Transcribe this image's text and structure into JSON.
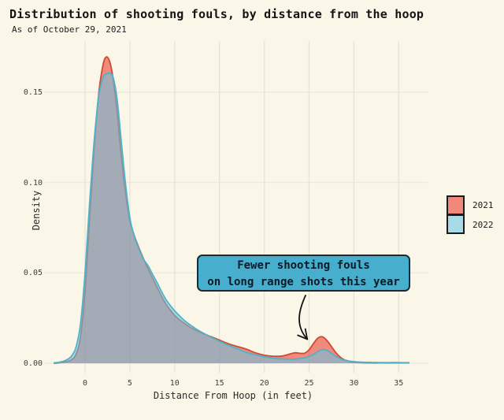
{
  "header": {
    "title": "Distribution of shooting fouls, by distance from the hoop",
    "subtitle": "As of October 29, 2021"
  },
  "chart_data": {
    "type": "area",
    "subtype": "density",
    "title": "Distribution of shooting fouls, by distance from the hoop",
    "subtitle": "As of October 29, 2021",
    "xlabel": "Distance From Hoop (in feet)",
    "ylabel": "Density",
    "x_ticks": [
      0,
      5,
      10,
      15,
      20,
      25,
      30,
      35
    ],
    "y_ticks": [
      "0.00",
      "0.05",
      "0.10",
      "0.15"
    ],
    "xlim": [
      -4.4,
      38.2
    ],
    "ylim": [
      0,
      0.178
    ],
    "grid": true,
    "legend_position": "right",
    "x": [
      -3.5,
      -3,
      -2.5,
      -2,
      -1.5,
      -1,
      -0.5,
      0,
      0.5,
      1,
      1.5,
      2,
      2.4,
      2.8,
      3.2,
      3.6,
      4,
      4.5,
      5,
      5.5,
      6,
      6.5,
      7,
      7.5,
      8,
      8.5,
      9,
      9.5,
      10,
      10.5,
      11,
      11.5,
      12,
      12.5,
      13,
      14,
      15,
      16,
      17,
      18,
      19,
      20,
      21,
      22,
      23,
      23.5,
      24,
      24.5,
      25,
      25.5,
      26,
      26.5,
      27,
      27.5,
      28,
      28.5,
      29,
      30,
      31,
      32,
      33,
      34,
      35,
      36.2
    ],
    "series": [
      {
        "name": "2021",
        "stroke": "#CF4A32",
        "fill": "#E83124",
        "fill_opacity": 0.55,
        "legend_color": "#F0897B",
        "values": [
          0,
          0.0002,
          0.0005,
          0.001,
          0.002,
          0.005,
          0.015,
          0.04,
          0.08,
          0.118,
          0.148,
          0.165,
          0.1695,
          0.166,
          0.155,
          0.138,
          0.117,
          0.095,
          0.079,
          0.0705,
          0.064,
          0.058,
          0.0525,
          0.0475,
          0.0425,
          0.0375,
          0.033,
          0.0295,
          0.0265,
          0.0243,
          0.0224,
          0.0207,
          0.0192,
          0.0179,
          0.0168,
          0.0148,
          0.0128,
          0.0108,
          0.0093,
          0.0078,
          0.0058,
          0.0045,
          0.0039,
          0.004,
          0.0053,
          0.0058,
          0.0055,
          0.0056,
          0.0075,
          0.011,
          0.014,
          0.0146,
          0.0125,
          0.0092,
          0.0058,
          0.0033,
          0.0018,
          0.0005,
          0.0003,
          0.0002,
          0.0002,
          0.0002,
          0.0002,
          0.0002
        ]
      },
      {
        "name": "2022",
        "stroke": "#4FB2CB",
        "fill": "#65C6E8",
        "fill_opacity": 0.55,
        "legend_color": "#A8DBE7",
        "values": [
          0.0002,
          0.0005,
          0.001,
          0.002,
          0.004,
          0.009,
          0.022,
          0.05,
          0.088,
          0.122,
          0.147,
          0.158,
          0.16,
          0.1605,
          0.157,
          0.145,
          0.125,
          0.1,
          0.0805,
          0.0702,
          0.0635,
          0.0577,
          0.0542,
          0.0495,
          0.045,
          0.04,
          0.0355,
          0.032,
          0.029,
          0.0264,
          0.024,
          0.022,
          0.0203,
          0.0186,
          0.0172,
          0.0146,
          0.0122,
          0.01,
          0.008,
          0.006,
          0.0047,
          0.0036,
          0.0028,
          0.0024,
          0.0022,
          0.0023,
          0.0026,
          0.003,
          0.0038,
          0.005,
          0.0065,
          0.0076,
          0.0071,
          0.0055,
          0.0038,
          0.0025,
          0.0016,
          0.0009,
          0.0006,
          0.0005,
          0.0004,
          0.0004,
          0.0004,
          0.0003
        ]
      }
    ],
    "annotation": {
      "line1": "Fewer shooting fouls",
      "line2": "on long range shots this year",
      "arrow_from": {
        "x": 24.6,
        "y": 0.0375
      },
      "arrow_to": {
        "x": 24.8,
        "y": 0.0133
      }
    }
  },
  "colors": {
    "background": "#FAF6E8",
    "grid_vertical": "#E8E4D8",
    "grid_horizontal": "#EDE9DB",
    "annotation_fill": "#47AECD",
    "annotation_border": "#1A2B33",
    "annotation_text": "#0C1B26",
    "arrow": "#141414",
    "legend_border": "#1B1B1B",
    "title_text": "#141414",
    "tick_text": "#3F3F3F"
  }
}
